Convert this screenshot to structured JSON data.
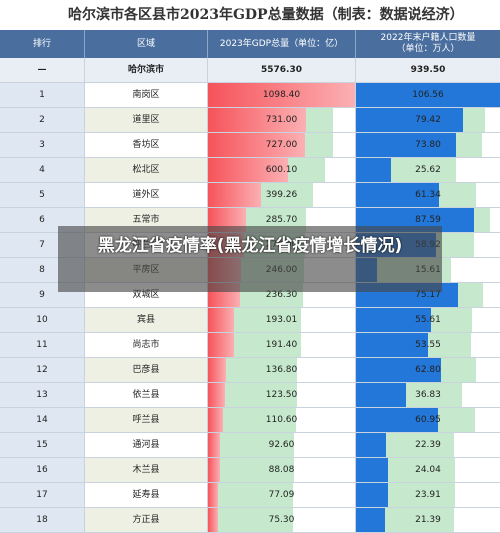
{
  "title": "哈尔滨市各区县市2023年GDP总量数据（制表：数据说经济）",
  "headers": {
    "rank": "排行",
    "area": "区域",
    "gdp": "2023年GDP总量（单位：亿）",
    "pop_line1": "2022年末户籍人口数量",
    "pop_line2": "（单位：万人）"
  },
  "total": {
    "rank": "—",
    "area": "哈尔滨市",
    "gdp": "5576.30",
    "pop": "939.50"
  },
  "rows": [
    {
      "rank": "1",
      "area": "南岗区",
      "gdp": "1098.40",
      "pop": "106.56"
    },
    {
      "rank": "2",
      "area": "道里区",
      "gdp": "731.00",
      "pop": "79.42"
    },
    {
      "rank": "3",
      "area": "香坊区",
      "gdp": "727.00",
      "pop": "73.80"
    },
    {
      "rank": "4",
      "area": "松北区",
      "gdp": "600.10",
      "pop": "25.62"
    },
    {
      "rank": "5",
      "area": "道外区",
      "gdp": "399.26",
      "pop": "61.34"
    },
    {
      "rank": "6",
      "area": "五常市",
      "gdp": "285.70",
      "pop": "87.59"
    },
    {
      "rank": "7",
      "area": "呼兰区",
      "gdp": "270.00",
      "pop": "58.92"
    },
    {
      "rank": "8",
      "area": "平房区",
      "gdp": "246.00",
      "pop": "15.61"
    },
    {
      "rank": "9",
      "area": "双城区",
      "gdp": "236.30",
      "pop": "75.17"
    },
    {
      "rank": "10",
      "area": "宾县",
      "gdp": "193.01",
      "pop": "55.61"
    },
    {
      "rank": "11",
      "area": "尚志市",
      "gdp": "191.40",
      "pop": "53.55"
    },
    {
      "rank": "12",
      "area": "巴彦县",
      "gdp": "136.80",
      "pop": "62.80"
    },
    {
      "rank": "13",
      "area": "依兰县",
      "gdp": "123.50",
      "pop": "36.83"
    },
    {
      "rank": "14",
      "area": "呼兰县",
      "gdp": "110.60",
      "pop": "60.95"
    },
    {
      "rank": "15",
      "area": "通河县",
      "gdp": "92.60",
      "pop": "22.39"
    },
    {
      "rank": "16",
      "area": "木兰县",
      "gdp": "88.08",
      "pop": "24.04"
    },
    {
      "rank": "17",
      "area": "延寿县",
      "gdp": "77.09",
      "pop": "23.91"
    },
    {
      "rank": "18",
      "area": "方正县",
      "gdp": "75.30",
      "pop": "21.39"
    }
  ],
  "scale": {
    "gdp_max": 1098.4,
    "pop_max": 106.56
  },
  "overlay_text": "黑龙江省疫情率(黑龙江省疫情增长情况)",
  "colors": {
    "header": "#4a6f9f",
    "gdp_bar": "#f6535a",
    "pop_bar": "#2277d9",
    "rest": "#c6e9cd"
  }
}
